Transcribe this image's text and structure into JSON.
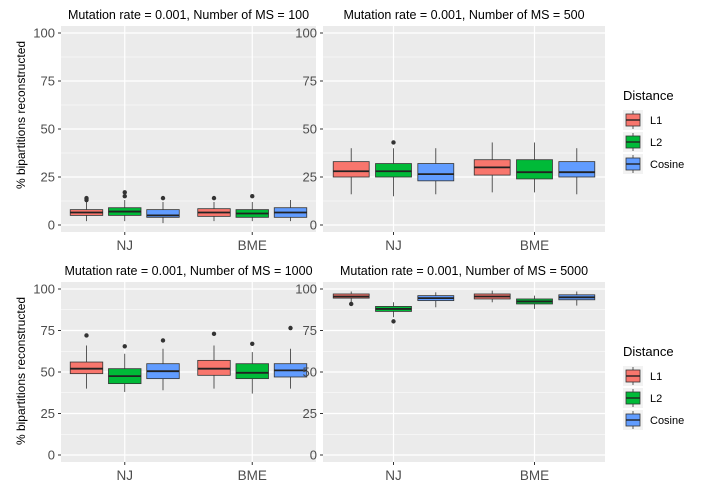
{
  "ylabel": "% bipartitions reconstructed",
  "colors": {
    "L1": "#F8766D",
    "L2": "#00BA38",
    "Cosine": "#619CFF",
    "panel_bg": "#EBEBEB",
    "grid": "#FFFFFF"
  },
  "legends": [
    {
      "title": "Distance",
      "items": [
        "L1",
        "L2",
        "Cosine"
      ]
    },
    {
      "title": "Distance",
      "items": [
        "L1",
        "L2",
        "Cosine"
      ]
    }
  ],
  "chart_data": [
    {
      "type": "box",
      "title": "Mutation rate = 0.001, Number of MS = 100",
      "categories": [
        "NJ",
        "BME"
      ],
      "ylim": [
        0,
        100
      ],
      "yticks": [
        "0",
        "25",
        "50",
        "75",
        "100"
      ],
      "series": [
        {
          "name": "L1",
          "boxes": [
            {
              "min": 2,
              "q1": 5,
              "median": 6.5,
              "q3": 8,
              "max": 12,
              "outliers": [
                13,
                14
              ]
            },
            {
              "min": 2,
              "q1": 4.5,
              "median": 6.5,
              "q3": 8.5,
              "max": 12,
              "outliers": [
                14
              ]
            }
          ]
        },
        {
          "name": "L2",
          "boxes": [
            {
              "min": 2,
              "q1": 5,
              "median": 7,
              "q3": 9,
              "max": 13,
              "outliers": [
                15,
                17
              ]
            },
            {
              "min": 2,
              "q1": 4,
              "median": 6,
              "q3": 8,
              "max": 12,
              "outliers": [
                15
              ]
            }
          ]
        },
        {
          "name": "Cosine",
          "boxes": [
            {
              "min": 1,
              "q1": 4,
              "median": 5,
              "q3": 8,
              "max": 12,
              "outliers": [
                14
              ]
            },
            {
              "min": 2,
              "q1": 4,
              "median": 6.5,
              "q3": 9,
              "max": 13,
              "outliers": []
            }
          ]
        }
      ]
    },
    {
      "type": "box",
      "title": "Mutation rate = 0.001, Number of MS = 500",
      "categories": [
        "NJ",
        "BME"
      ],
      "ylim": [
        0,
        100
      ],
      "yticks": [
        "0",
        "25",
        "50",
        "75",
        "100"
      ],
      "series": [
        {
          "name": "L1",
          "boxes": [
            {
              "min": 16,
              "q1": 25,
              "median": 28,
              "q3": 33,
              "max": 40,
              "outliers": []
            },
            {
              "min": 17,
              "q1": 26,
              "median": 30,
              "q3": 34,
              "max": 43,
              "outliers": []
            }
          ]
        },
        {
          "name": "L2",
          "boxes": [
            {
              "min": 15,
              "q1": 25,
              "median": 28,
              "q3": 32,
              "max": 40,
              "outliers": [
                43
              ]
            },
            {
              "min": 17,
              "q1": 24,
              "median": 27.5,
              "q3": 34,
              "max": 43,
              "outliers": []
            }
          ]
        },
        {
          "name": "Cosine",
          "boxes": [
            {
              "min": 16,
              "q1": 23,
              "median": 26.5,
              "q3": 32,
              "max": 40,
              "outliers": []
            },
            {
              "min": 16,
              "q1": 25,
              "median": 27.5,
              "q3": 33,
              "max": 40,
              "outliers": []
            }
          ]
        }
      ]
    },
    {
      "type": "box",
      "title": "Mutation rate = 0.001, Number of MS = 1000",
      "categories": [
        "NJ",
        "BME"
      ],
      "ylim": [
        0,
        100
      ],
      "yticks": [
        "0",
        "25",
        "50",
        "75",
        "100"
      ],
      "series": [
        {
          "name": "L1",
          "boxes": [
            {
              "min": 40,
              "q1": 49,
              "median": 52,
              "q3": 56,
              "max": 66,
              "outliers": [
                72
              ]
            },
            {
              "min": 40,
              "q1": 48,
              "median": 52,
              "q3": 57,
              "max": 66,
              "outliers": [
                73
              ]
            }
          ]
        },
        {
          "name": "L2",
          "boxes": [
            {
              "min": 38,
              "q1": 43,
              "median": 47.5,
              "q3": 52,
              "max": 61,
              "outliers": [
                65.5
              ]
            },
            {
              "min": 37,
              "q1": 46,
              "median": 49.5,
              "q3": 55,
              "max": 62,
              "outliers": [
                67
              ]
            }
          ]
        },
        {
          "name": "Cosine",
          "boxes": [
            {
              "min": 39,
              "q1": 46,
              "median": 50.5,
              "q3": 55,
              "max": 64,
              "outliers": [
                69
              ]
            },
            {
              "min": 40,
              "q1": 47,
              "median": 51,
              "q3": 55,
              "max": 64,
              "outliers": [
                76.5
              ]
            }
          ]
        }
      ]
    },
    {
      "type": "box",
      "title": "Mutation rate = 0.001, Number of MS = 5000",
      "categories": [
        "NJ",
        "BME"
      ],
      "ylim": [
        0,
        100
      ],
      "yticks": [
        "0",
        "25",
        "50",
        "75",
        "100"
      ],
      "series": [
        {
          "name": "L1",
          "boxes": [
            {
              "min": 92,
              "q1": 94.5,
              "median": 95.5,
              "q3": 97,
              "max": 98.5,
              "outliers": [
                91
              ]
            },
            {
              "min": 92,
              "q1": 94,
              "median": 95.5,
              "q3": 97,
              "max": 99,
              "outliers": []
            }
          ]
        },
        {
          "name": "L2",
          "boxes": [
            {
              "min": 83,
              "q1": 86.5,
              "median": 88,
              "q3": 89.5,
              "max": 92,
              "outliers": [
                80.5
              ]
            },
            {
              "min": 88,
              "q1": 91,
              "median": 92.5,
              "q3": 94,
              "max": 96,
              "outliers": []
            }
          ]
        },
        {
          "name": "Cosine",
          "boxes": [
            {
              "min": 89,
              "q1": 93,
              "median": 94.5,
              "q3": 96,
              "max": 98,
              "outliers": []
            },
            {
              "min": 90,
              "q1": 93.5,
              "median": 95,
              "q3": 96.5,
              "max": 98.5,
              "outliers": []
            }
          ]
        }
      ]
    }
  ]
}
